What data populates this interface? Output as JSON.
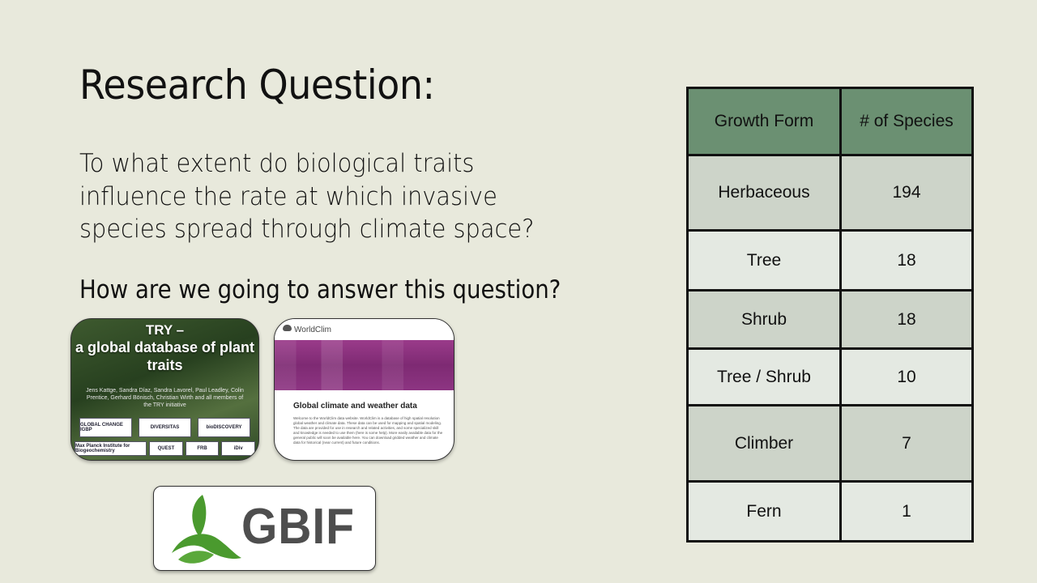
{
  "slide": {
    "title": "Research Question:",
    "question": "To what extent do biological traits influence the rate at which invasive species spread through climate space?",
    "how": "How are we going to answer this question?"
  },
  "try_card": {
    "title_line1": "TRY –",
    "title_line2": "a global database of plant traits",
    "authors": "Jens Kattge, Sandra Díaz, Sandra Lavorel, Paul Leadley, Colin Prentice, Gerhard Bönisch, Christian Wirth and all members of the TRY initiative",
    "logos": [
      "GLOBAL CHANGE IGBP",
      "DIVERSITAS",
      "bioDISCOVERY"
    ],
    "logos2": [
      "Max Planck Institute for Biogeochemistry",
      "QUEST",
      "FRB",
      "iDiv"
    ]
  },
  "worldclim_card": {
    "brand": "WorldClim",
    "heading": "Global climate and weather data",
    "body": "Welcome to the WorldClim data website. WorldClim is a database of high spatial resolution global weather and climate data. These data can be used for mapping and spatial modeling. The data are provided for use in research and related activities, and some specialized skill and knowledge is needed to use them (here is some help). More easily available data for the general public will soon be available here. You can download gridded weather and climate data for historical (near current) and future conditions."
  },
  "gbif": {
    "wordmark": "GBIF"
  },
  "table": {
    "headers": [
      "Growth Form",
      "# of Species"
    ],
    "rows": [
      {
        "form": "Herbaceous",
        "count": "194"
      },
      {
        "form": "Tree",
        "count": "18"
      },
      {
        "form": "Shrub",
        "count": "18"
      },
      {
        "form": "Tree / Shrub",
        "count": "10"
      },
      {
        "form": "Climber",
        "count": "7"
      },
      {
        "form": "Fern",
        "count": "1"
      }
    ]
  },
  "colors": {
    "background": "#e8e9dc",
    "table_header": "#6b9072",
    "row_dark": "#cdd4c9",
    "row_light": "#e4e9e2",
    "gbif_green": "#4a9a2e"
  }
}
